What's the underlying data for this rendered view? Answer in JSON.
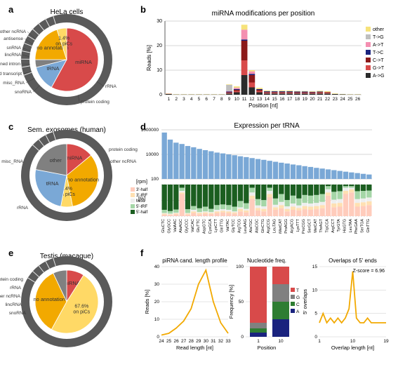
{
  "colors": {
    "red": "#d84a4a",
    "yellow": "#f2a900",
    "blue": "#7aa8d6",
    "grey": "#808080",
    "lightgrey": "#bfbfbf",
    "darkgrey": "#3a3a3a",
    "outer_ring": "#5a5a5a",
    "outer_tick": "#e6e6e6",
    "green_dark": "#2e7d32",
    "green_mid": "#66bb6a",
    "green_light": "#a5d6a7",
    "green_vlight": "#dcedc8",
    "peach": "#ffccbc",
    "pink": "#f48fb1",
    "navy": "#1a237e",
    "darkred": "#8b1a1a",
    "almostblack": "#2b2b2b"
  },
  "a": {
    "label": "a",
    "title": "HeLa cells",
    "slices": [
      {
        "label": "miRNA",
        "value": 58,
        "color": "#d84a4a"
      },
      {
        "label": "tRNA",
        "value": 13,
        "color": "#7aa8d6"
      },
      {
        "label": "other",
        "value": 4,
        "color": "#808080"
      },
      {
        "label": "no annotation",
        "value": 20,
        "color": "#f2a900"
      },
      {
        "label": "1.4% on piCs",
        "value": 5,
        "color": "#ffd966",
        "inner_label": "1.4%\non piCs"
      }
    ],
    "outer_labels": [
      "other ncRNA",
      "antisense",
      "snRNA",
      "lincRNA",
      "retained intron",
      "processed transcript",
      "misc_RNA",
      "snoRNA",
      "protein coding",
      "rRNA"
    ]
  },
  "b": {
    "label": "b",
    "title": "miRNA modifications per position",
    "xlabel": "Position [nt]",
    "ylabel": "Reads [%]",
    "ylim": [
      0,
      30
    ],
    "ytick_step": 10,
    "positions": [
      1,
      2,
      3,
      4,
      5,
      6,
      7,
      8,
      9,
      10,
      11,
      12,
      13,
      14,
      15,
      16,
      17,
      18,
      19,
      20,
      21,
      22,
      23,
      24,
      25,
      26
    ],
    "series": [
      {
        "name": "other",
        "color": "#f6e27a",
        "values": [
          0.1,
          0.1,
          0.1,
          0.1,
          0.1,
          0.1,
          0.1,
          0.1,
          0.2,
          0.5,
          2.0,
          0.5,
          0.5,
          0.3,
          0.2,
          0.3,
          0.3,
          0.2,
          0.2,
          0.2,
          0.3,
          0.3,
          0.2,
          0.1,
          0.1,
          0.1
        ]
      },
      {
        "name": "T->G",
        "color": "#bfbfbf",
        "values": [
          0,
          0,
          0,
          0,
          0,
          0,
          0,
          0,
          2.5,
          0.1,
          0,
          0,
          0,
          0,
          0,
          0,
          0,
          0,
          0,
          0,
          0,
          0,
          0,
          0,
          0,
          0
        ]
      },
      {
        "name": "A->T",
        "color": "#f48fb1",
        "values": [
          0,
          0,
          0,
          0,
          0,
          0,
          0,
          0,
          0.2,
          0.5,
          4.0,
          1.0,
          0,
          0,
          0,
          0,
          0,
          0,
          0,
          0,
          0,
          0,
          0,
          0,
          0,
          0
        ]
      },
      {
        "name": "T->C",
        "color": "#1a237e",
        "values": [
          0,
          0,
          0,
          0,
          0,
          0,
          0,
          0,
          0.3,
          0.3,
          0.5,
          0.5,
          0.3,
          0.3,
          0.3,
          0.3,
          0.3,
          0.3,
          0.3,
          0.2,
          0.2,
          0,
          0,
          0,
          0,
          0
        ]
      },
      {
        "name": "C->T",
        "color": "#8b1a1a",
        "values": [
          0,
          0,
          0,
          0,
          0,
          0,
          0,
          0,
          0.2,
          0.5,
          8.0,
          3.0,
          0.5,
          0.3,
          0.3,
          0.3,
          0.3,
          0.2,
          0.2,
          0.2,
          0.3,
          0.3,
          0,
          0,
          0,
          0
        ]
      },
      {
        "name": "G->T",
        "color": "#d84a4a",
        "values": [
          0.1,
          0,
          0,
          0,
          0,
          0,
          0,
          0,
          0.3,
          0.5,
          6.0,
          2.0,
          0.5,
          0.3,
          0.3,
          0.3,
          0.3,
          0.3,
          0.3,
          0.3,
          0.3,
          0.3,
          0,
          0,
          0,
          0
        ]
      },
      {
        "name": "A->G",
        "color": "#2b2b2b",
        "values": [
          0.3,
          0.1,
          0.1,
          0.1,
          0.1,
          0.1,
          0.1,
          0.1,
          0.5,
          1.0,
          8.0,
          3.0,
          1.0,
          0.5,
          0.5,
          0.5,
          0.5,
          0.5,
          0.5,
          0.5,
          0.5,
          0.5,
          0.3,
          0.2,
          0.1,
          0.1
        ]
      }
    ]
  },
  "c": {
    "label": "c",
    "title": "Sem. exosomes (human)",
    "slices": [
      {
        "label": "miRNA",
        "value": 14,
        "color": "#d84a4a"
      },
      {
        "label": "no annotation",
        "value": 33,
        "color": "#f2a900"
      },
      {
        "label": "3.4% on piCs",
        "value": 6,
        "color": "#ffd966",
        "inner_label": "3.4%\non piCs"
      },
      {
        "label": "tRNA",
        "value": 25,
        "color": "#7aa8d6"
      },
      {
        "label": "other",
        "value": 22,
        "color": "#808080"
      }
    ],
    "outer_labels": [
      "misc_RNA",
      "rRNA",
      "protein coding",
      "other ncRNA"
    ]
  },
  "d": {
    "label": "d",
    "title": "Expression per tRNA",
    "ylabel_top": "[rpm]",
    "ylabel_bot": "[%]",
    "ylim": [
      100,
      1000000
    ],
    "ytick_labels": [
      "100",
      "10000",
      "1000000"
    ],
    "trnas": [
      "GluCTC",
      "GlyGCC",
      "ValAAC",
      "AlaAGC",
      "GlyCCC",
      "ValCAC",
      "GluTTC",
      "AspGTC",
      "CysGCA",
      "LysCTT",
      "GlnTTG",
      "ValTAC",
      "GlyTCC",
      "ArgTCG",
      "LeuAAG",
      "AlaTGC",
      "AlaCGC",
      "GlnCTG",
      "ArgCCG",
      "LeuTAG",
      "iMetCAT",
      "ProAGG",
      "ArgACG",
      "LysTTT",
      "ProCGG",
      "SerGCT",
      "MetCAT",
      "ThrAGT",
      "TrpCCA",
      "ArgCCT",
      "TyrGTA",
      "HisGTG",
      "LeuTAA",
      "PheGAA",
      "SerTGA",
      "GlnTTG"
    ],
    "rpm": [
      600000,
      160000,
      90000,
      70000,
      48000,
      38000,
      28000,
      22000,
      18000,
      14000,
      12000,
      10000,
      8500,
      7000,
      6000,
      5000,
      4200,
      3600,
      3000,
      2500,
      2100,
      1800,
      1500,
      1300,
      1100,
      950,
      800,
      700,
      600,
      520,
      450,
      390,
      340,
      300,
      260,
      230
    ],
    "bar_color": "#7aa8d6",
    "composition_legend": [
      {
        "name": "3'-half",
        "color": "#ffccbc"
      },
      {
        "name": "3'-tRF",
        "color": "#ffe0b2"
      },
      {
        "name": "Misc",
        "color": "#eeeeee"
      },
      {
        "name": "5'-tRF",
        "color": "#a5d6a7"
      },
      {
        "name": "5'-half",
        "color": "#1b5e20"
      }
    ],
    "composition": [
      [
        5,
        3,
        2,
        10,
        80
      ],
      [
        4,
        2,
        2,
        8,
        84
      ],
      [
        6,
        3,
        2,
        10,
        79
      ],
      [
        70,
        5,
        5,
        10,
        10
      ],
      [
        5,
        3,
        2,
        12,
        78
      ],
      [
        10,
        5,
        5,
        12,
        68
      ],
      [
        6,
        4,
        3,
        12,
        75
      ],
      [
        8,
        4,
        3,
        15,
        70
      ],
      [
        7,
        3,
        3,
        10,
        77
      ],
      [
        10,
        5,
        5,
        15,
        65
      ],
      [
        12,
        5,
        5,
        15,
        63
      ],
      [
        10,
        5,
        5,
        15,
        65
      ],
      [
        8,
        4,
        3,
        15,
        70
      ],
      [
        15,
        8,
        5,
        20,
        52
      ],
      [
        12,
        6,
        5,
        18,
        59
      ],
      [
        55,
        10,
        10,
        15,
        10
      ],
      [
        18,
        8,
        8,
        20,
        46
      ],
      [
        15,
        8,
        8,
        20,
        49
      ],
      [
        60,
        10,
        10,
        10,
        10
      ],
      [
        20,
        8,
        8,
        20,
        44
      ],
      [
        25,
        10,
        10,
        25,
        30
      ],
      [
        15,
        8,
        8,
        20,
        49
      ],
      [
        20,
        10,
        10,
        25,
        35
      ],
      [
        18,
        8,
        8,
        22,
        44
      ],
      [
        22,
        10,
        10,
        25,
        33
      ],
      [
        20,
        10,
        10,
        25,
        35
      ],
      [
        22,
        10,
        10,
        25,
        33
      ],
      [
        25,
        10,
        10,
        25,
        30
      ],
      [
        65,
        10,
        10,
        10,
        5
      ],
      [
        28,
        12,
        12,
        25,
        23
      ],
      [
        30,
        12,
        12,
        25,
        21
      ],
      [
        70,
        10,
        10,
        5,
        5
      ],
      [
        75,
        10,
        5,
        5,
        5
      ],
      [
        30,
        12,
        12,
        25,
        21
      ],
      [
        32,
        12,
        12,
        24,
        20
      ],
      [
        35,
        12,
        12,
        22,
        19
      ]
    ]
  },
  "e": {
    "label": "e",
    "title": "Testis (macaque)",
    "slices": [
      {
        "label": "miRNA",
        "value": 9,
        "color": "#d84a4a"
      },
      {
        "label": "67.6% on piCs",
        "value": 49,
        "color": "#ffd966",
        "inner_label": "67.6%\non piCs"
      },
      {
        "label": "no annotation",
        "value": 35,
        "color": "#f2a900"
      },
      {
        "label": "other",
        "value": 7,
        "color": "#808080"
      }
    ],
    "outer_labels": [
      "protein coding",
      "rRNA",
      "other ncRNA",
      "lincRNA",
      "snoRNA"
    ]
  },
  "f": {
    "label": "f",
    "sub1": {
      "title": "piRNA cand. length profile",
      "xlabel": "Read length [nt]",
      "ylabel": "Reads [%]",
      "xticks": [
        24,
        25,
        26,
        27,
        28,
        29,
        30,
        31,
        32,
        33
      ],
      "ylim": [
        0,
        40
      ],
      "ytick_step": 10,
      "values": [
        1,
        2,
        5,
        9,
        16,
        30,
        38,
        20,
        8,
        2
      ],
      "color": "#f2a900"
    },
    "sub2": {
      "title": "Nucleotide freq.",
      "xlabel": "Position",
      "ylabel": "Frequency [%]",
      "xticks": [
        1,
        10
      ],
      "ylim": [
        0,
        100
      ],
      "ytick_step": 50,
      "series": [
        {
          "name": "T",
          "color": "#d84a4a",
          "values": [
            80,
            25
          ]
        },
        {
          "name": "G",
          "color": "#808080",
          "values": [
            8,
            25
          ]
        },
        {
          "name": "C",
          "color": "#2e7d32",
          "values": [
            6,
            25
          ]
        },
        {
          "name": "A",
          "color": "#1a237e",
          "values": [
            6,
            25
          ]
        }
      ]
    },
    "sub3": {
      "title": "Overlaps of 5' ends",
      "xlabel": "Overlap length [nt]",
      "ylabel": "5' overlaps",
      "zscore": "Z-score = 6.96",
      "xticks": [
        1,
        10,
        19
      ],
      "ylim": [
        0,
        15
      ],
      "ytick_step": 5,
      "values": [
        3,
        5,
        3,
        4,
        3,
        4,
        3,
        4,
        6,
        14,
        4,
        3,
        3,
        4,
        3,
        3,
        3,
        3,
        3
      ],
      "color": "#f2a900"
    }
  }
}
